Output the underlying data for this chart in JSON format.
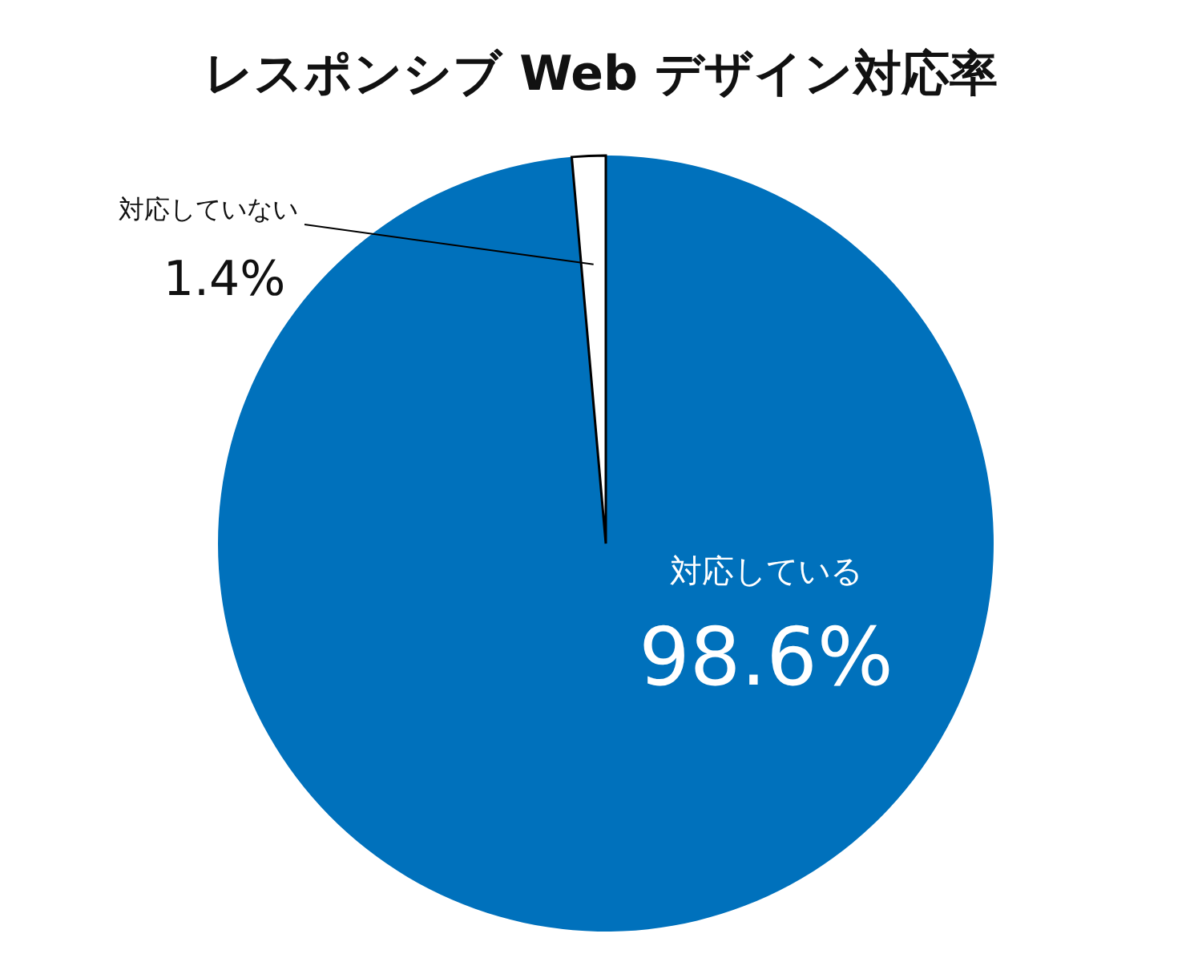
{
  "chart_data": {
    "type": "pie",
    "title": "レスポンシブ Web デザイン対応率",
    "categories": [
      "対応している",
      "対応していない"
    ],
    "values": [
      98.6,
      1.4
    ],
    "colors": [
      "#0071bc",
      "#ffffff"
    ],
    "value_labels": [
      "98.6%",
      "1.4%"
    ]
  }
}
